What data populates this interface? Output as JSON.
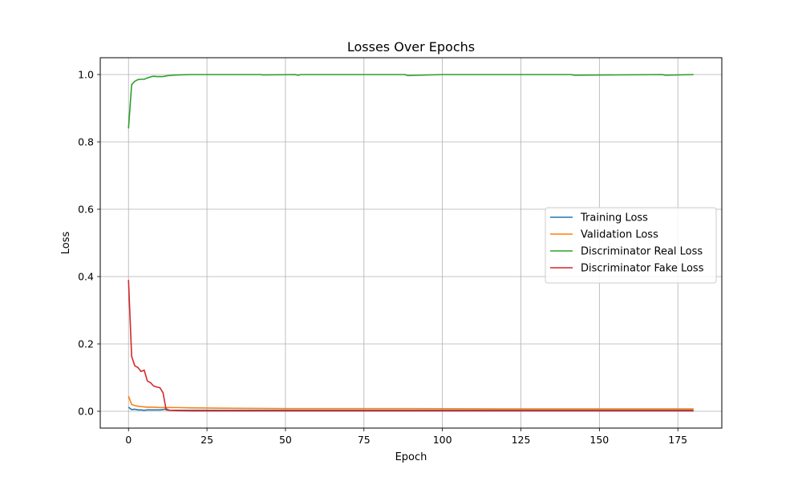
{
  "chart_data": {
    "type": "line",
    "title": "Losses Over Epochs",
    "xlabel": "Epoch",
    "ylabel": "Loss",
    "xlim": [
      -9,
      189
    ],
    "ylim": [
      -0.05,
      1.05
    ],
    "xticks": [
      0,
      25,
      50,
      75,
      100,
      125,
      150,
      175
    ],
    "yticks": [
      0.0,
      0.2,
      0.4,
      0.6,
      0.8,
      1.0
    ],
    "xtick_labels": [
      "0",
      "25",
      "50",
      "75",
      "100",
      "125",
      "150",
      "175"
    ],
    "ytick_labels": [
      "0.0",
      "0.2",
      "0.4",
      "0.6",
      "0.8",
      "1.0"
    ],
    "grid": true,
    "legend_position": "center-right",
    "series": [
      {
        "name": "Training Loss",
        "color": "#1f77b4",
        "x": [
          0,
          1,
          2,
          3,
          4,
          5,
          6,
          7,
          8,
          9,
          10,
          11,
          12,
          13,
          15,
          20,
          30,
          60,
          100,
          140,
          180
        ],
        "y": [
          0.012,
          0.005,
          0.006,
          0.004,
          0.004,
          0.003,
          0.004,
          0.004,
          0.004,
          0.004,
          0.004,
          0.005,
          0.007,
          0.003,
          0.003,
          0.003,
          0.003,
          0.003,
          0.003,
          0.003,
          0.003
        ]
      },
      {
        "name": "Validation Loss",
        "color": "#ff7f0e",
        "x": [
          0,
          1,
          2,
          3,
          4,
          5,
          6,
          8,
          10,
          12,
          15,
          20,
          30,
          50,
          80,
          120,
          150,
          180
        ],
        "y": [
          0.045,
          0.02,
          0.017,
          0.015,
          0.014,
          0.013,
          0.012,
          0.012,
          0.011,
          0.011,
          0.011,
          0.01,
          0.009,
          0.008,
          0.008,
          0.007,
          0.007,
          0.007
        ]
      },
      {
        "name": "Discriminator Real Loss",
        "color": "#2ca02c",
        "x": [
          0,
          1,
          2,
          3,
          4,
          5,
          6,
          7,
          8,
          9,
          10,
          11,
          12,
          13,
          14,
          16,
          20,
          25,
          30,
          42,
          43,
          53,
          54,
          55,
          70,
          88,
          89,
          100,
          141,
          142,
          170,
          171,
          180
        ],
        "y": [
          0.84,
          0.97,
          0.98,
          0.985,
          0.986,
          0.986,
          0.99,
          0.993,
          0.995,
          0.994,
          0.994,
          0.994,
          0.996,
          0.997,
          0.998,
          0.999,
          1.0,
          1.0,
          1.0,
          1.0,
          0.999,
          1.0,
          0.998,
          1.0,
          1.0,
          1.0,
          0.997,
          1.0,
          1.0,
          0.998,
          1.0,
          0.998,
          1.0
        ]
      },
      {
        "name": "Discriminator Fake Loss",
        "color": "#d62728",
        "x": [
          0,
          1,
          2,
          3,
          4,
          5,
          6,
          7,
          8,
          9,
          10,
          11,
          12,
          13,
          15,
          20,
          30,
          50,
          80,
          120,
          150,
          180
        ],
        "y": [
          0.39,
          0.163,
          0.135,
          0.13,
          0.118,
          0.122,
          0.09,
          0.085,
          0.075,
          0.072,
          0.07,
          0.055,
          0.004,
          0.003,
          0.002,
          0.001,
          0.001,
          0.001,
          0.001,
          0.001,
          0.001,
          0.001
        ]
      }
    ]
  }
}
